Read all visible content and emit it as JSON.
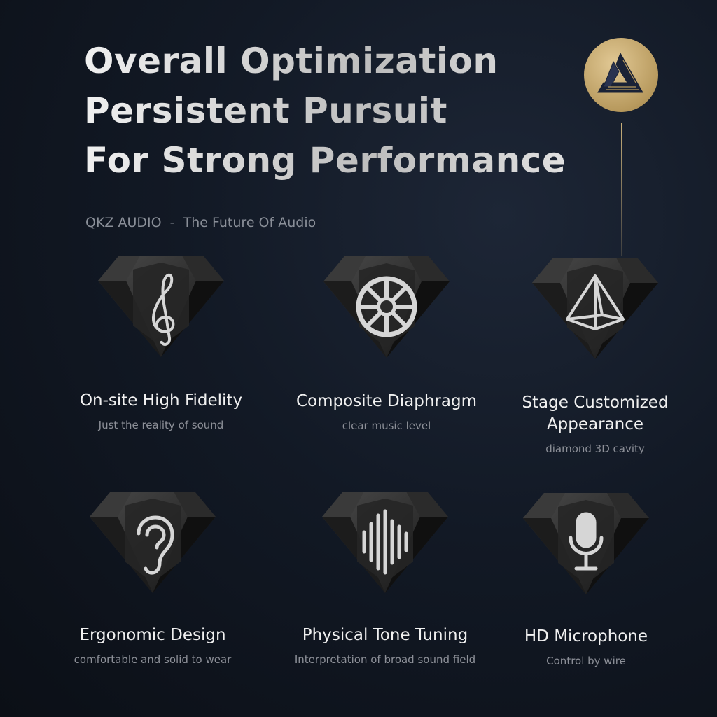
{
  "headline": {
    "lines": [
      "Overall Optimization",
      "Persistent Pursuit",
      "For Strong Performance"
    ]
  },
  "tagline": {
    "brand": "QKZ AUDIO",
    "separator": "-",
    "slogan": "The Future Of Audio"
  },
  "logo": {
    "color": "#c9ae74"
  },
  "features": [
    {
      "icon": "treble-clef-icon",
      "title": "On-site High Fidelity",
      "subtitle": "Just the reality of sound"
    },
    {
      "icon": "wheel-icon",
      "title": "Composite Diaphragm",
      "subtitle": "clear music level"
    },
    {
      "icon": "pyramid-icon",
      "title": "Stage Customized Appearance",
      "subtitle": "diamond 3D cavity"
    },
    {
      "icon": "ear-icon",
      "title": "Ergonomic Design",
      "subtitle": "comfortable and solid to wear"
    },
    {
      "icon": "sound-wave-icon",
      "title": "Physical Tone Tuning",
      "subtitle": "Interpretation of broad sound field"
    },
    {
      "icon": "microphone-icon",
      "title": "HD Microphone",
      "subtitle": "Control by wire"
    }
  ]
}
